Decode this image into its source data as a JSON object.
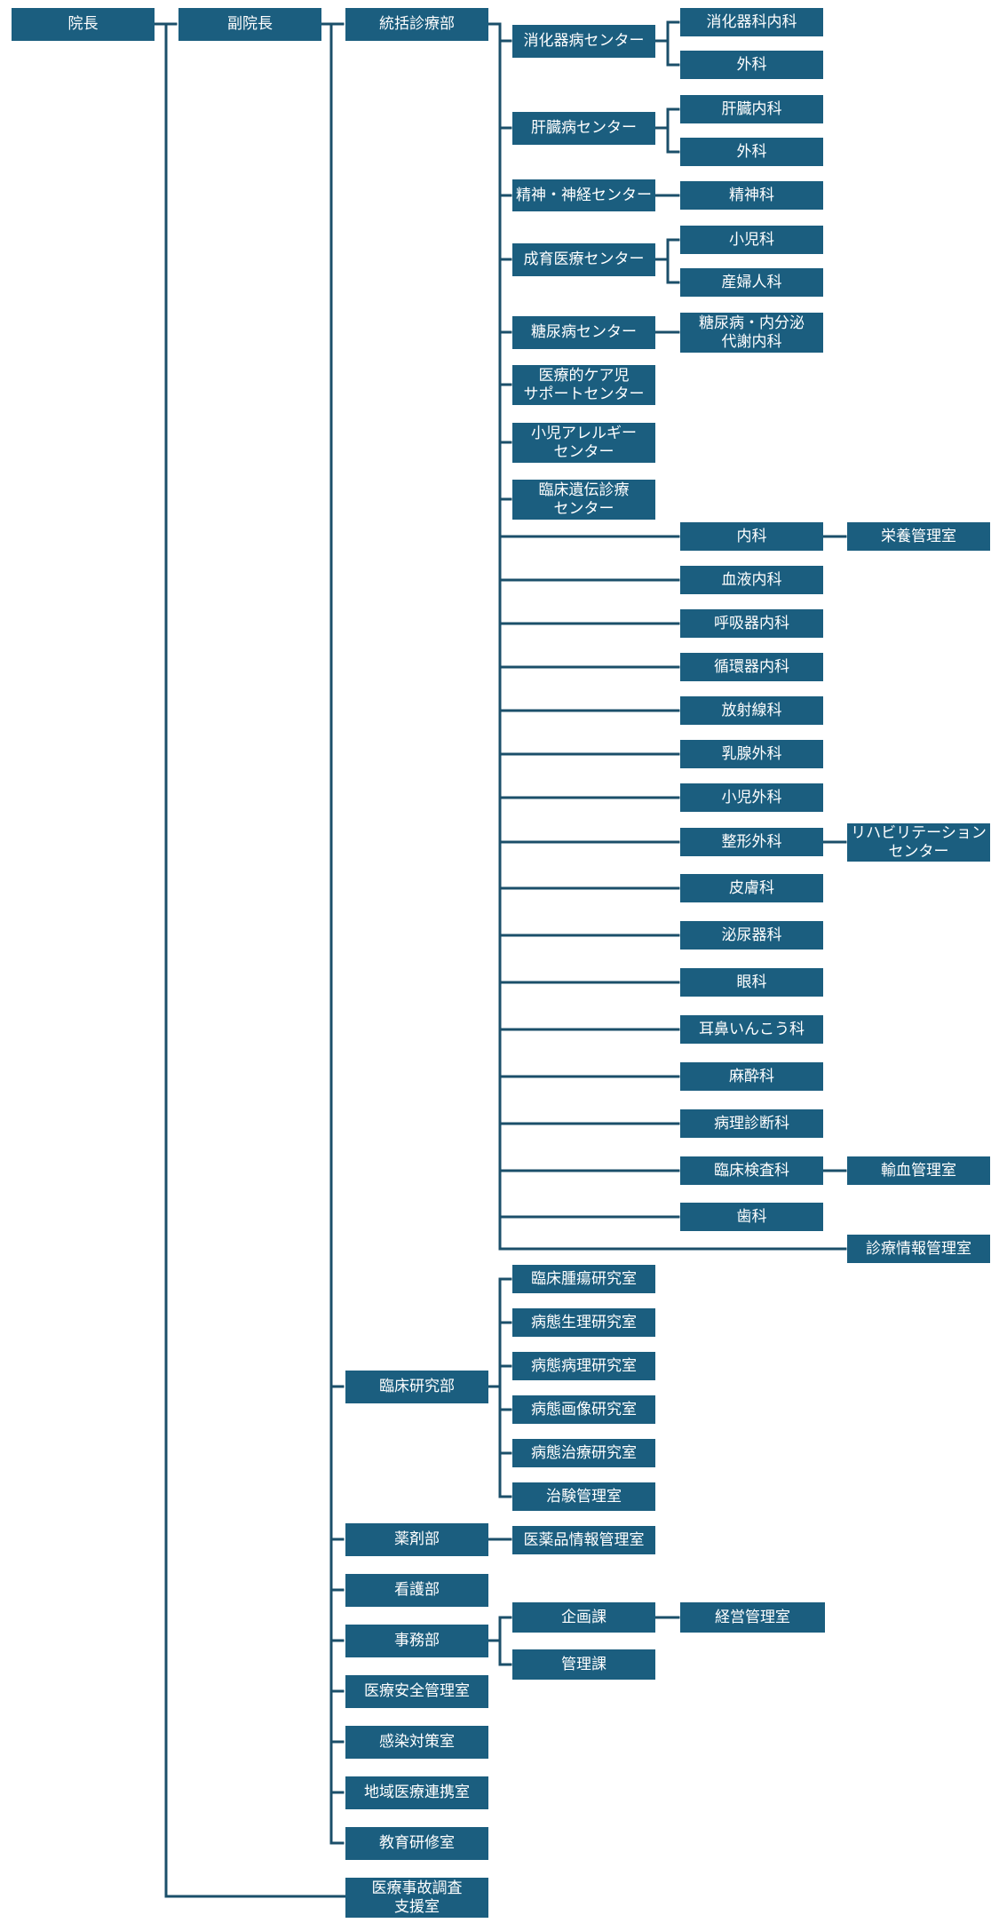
{
  "colors": {
    "box": "#1b5e7f",
    "line": "#1b4f6a",
    "text": "#ffffff"
  },
  "nodes": {
    "director": "院長",
    "vice_director": "副院長",
    "medical_dept": "統括診療部",
    "gastro_center": "消化器病センター",
    "gastro_internal": "消化器科内科",
    "gastro_surgery": "外科",
    "liver_center": "肝臓病センター",
    "liver_internal": "肝臓内科",
    "liver_surgery": "外科",
    "neuro_center": "精神・神経センター",
    "psychiatry": "精神科",
    "growth_center": "成育医療センター",
    "pediatrics": "小児科",
    "obgyn": "産婦人科",
    "diabetes_center": "糖尿病センター",
    "diabetes_dept": "糖尿病・内分泌\n代謝内科",
    "medcare_center": "医療的ケア児\nサポートセンター",
    "allergy_center": "小児アレルギー\nセンター",
    "genetics_center": "臨床遺伝診療\nセンター",
    "internal": "内科",
    "nutrition": "栄養管理室",
    "hematology": "血液内科",
    "respiratory": "呼吸器内科",
    "cardiology": "循環器内科",
    "radiology": "放射線科",
    "breast_surgery": "乳腺外科",
    "pediatric_surgery": "小児外科",
    "orthopedics": "整形外科",
    "rehab": "リハビリテーション\nセンター",
    "dermatology": "皮膚科",
    "urology": "泌尿器科",
    "ophthalmology": "眼科",
    "ent": "耳鼻いんこう科",
    "anesthesia": "麻酔科",
    "pathology": "病理診断科",
    "clinical_lab": "臨床検査科",
    "blood_transfusion": "輸血管理室",
    "dentistry": "歯科",
    "medical_info": "診療情報管理室",
    "research_dept": "臨床研究部",
    "tumor_lab": "臨床腫瘍研究室",
    "physiology_lab": "病態生理研究室",
    "pathology_lab": "病態病理研究室",
    "imaging_lab": "病態画像研究室",
    "therapy_lab": "病態治療研究室",
    "trial_office": "治験管理室",
    "pharmacy": "薬剤部",
    "drug_info": "医薬品情報管理室",
    "nursing": "看護部",
    "admin": "事務部",
    "planning": "企画課",
    "management_office": "経営管理室",
    "administration": "管理課",
    "safety": "医療安全管理室",
    "infection": "感染対策室",
    "community": "地域医療連携室",
    "education": "教育研修室",
    "accident_investigation": "医療事故調査\n支援室"
  }
}
